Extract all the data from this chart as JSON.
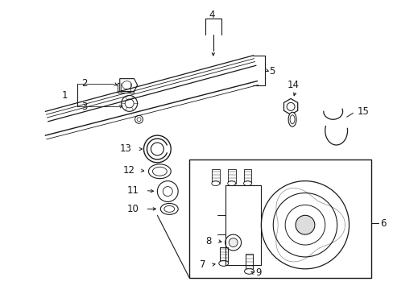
{
  "bg_color": "#ffffff",
  "line_color": "#1a1a1a",
  "fig_width": 4.89,
  "fig_height": 3.6,
  "dpi": 100,
  "label_fs": 8.5
}
